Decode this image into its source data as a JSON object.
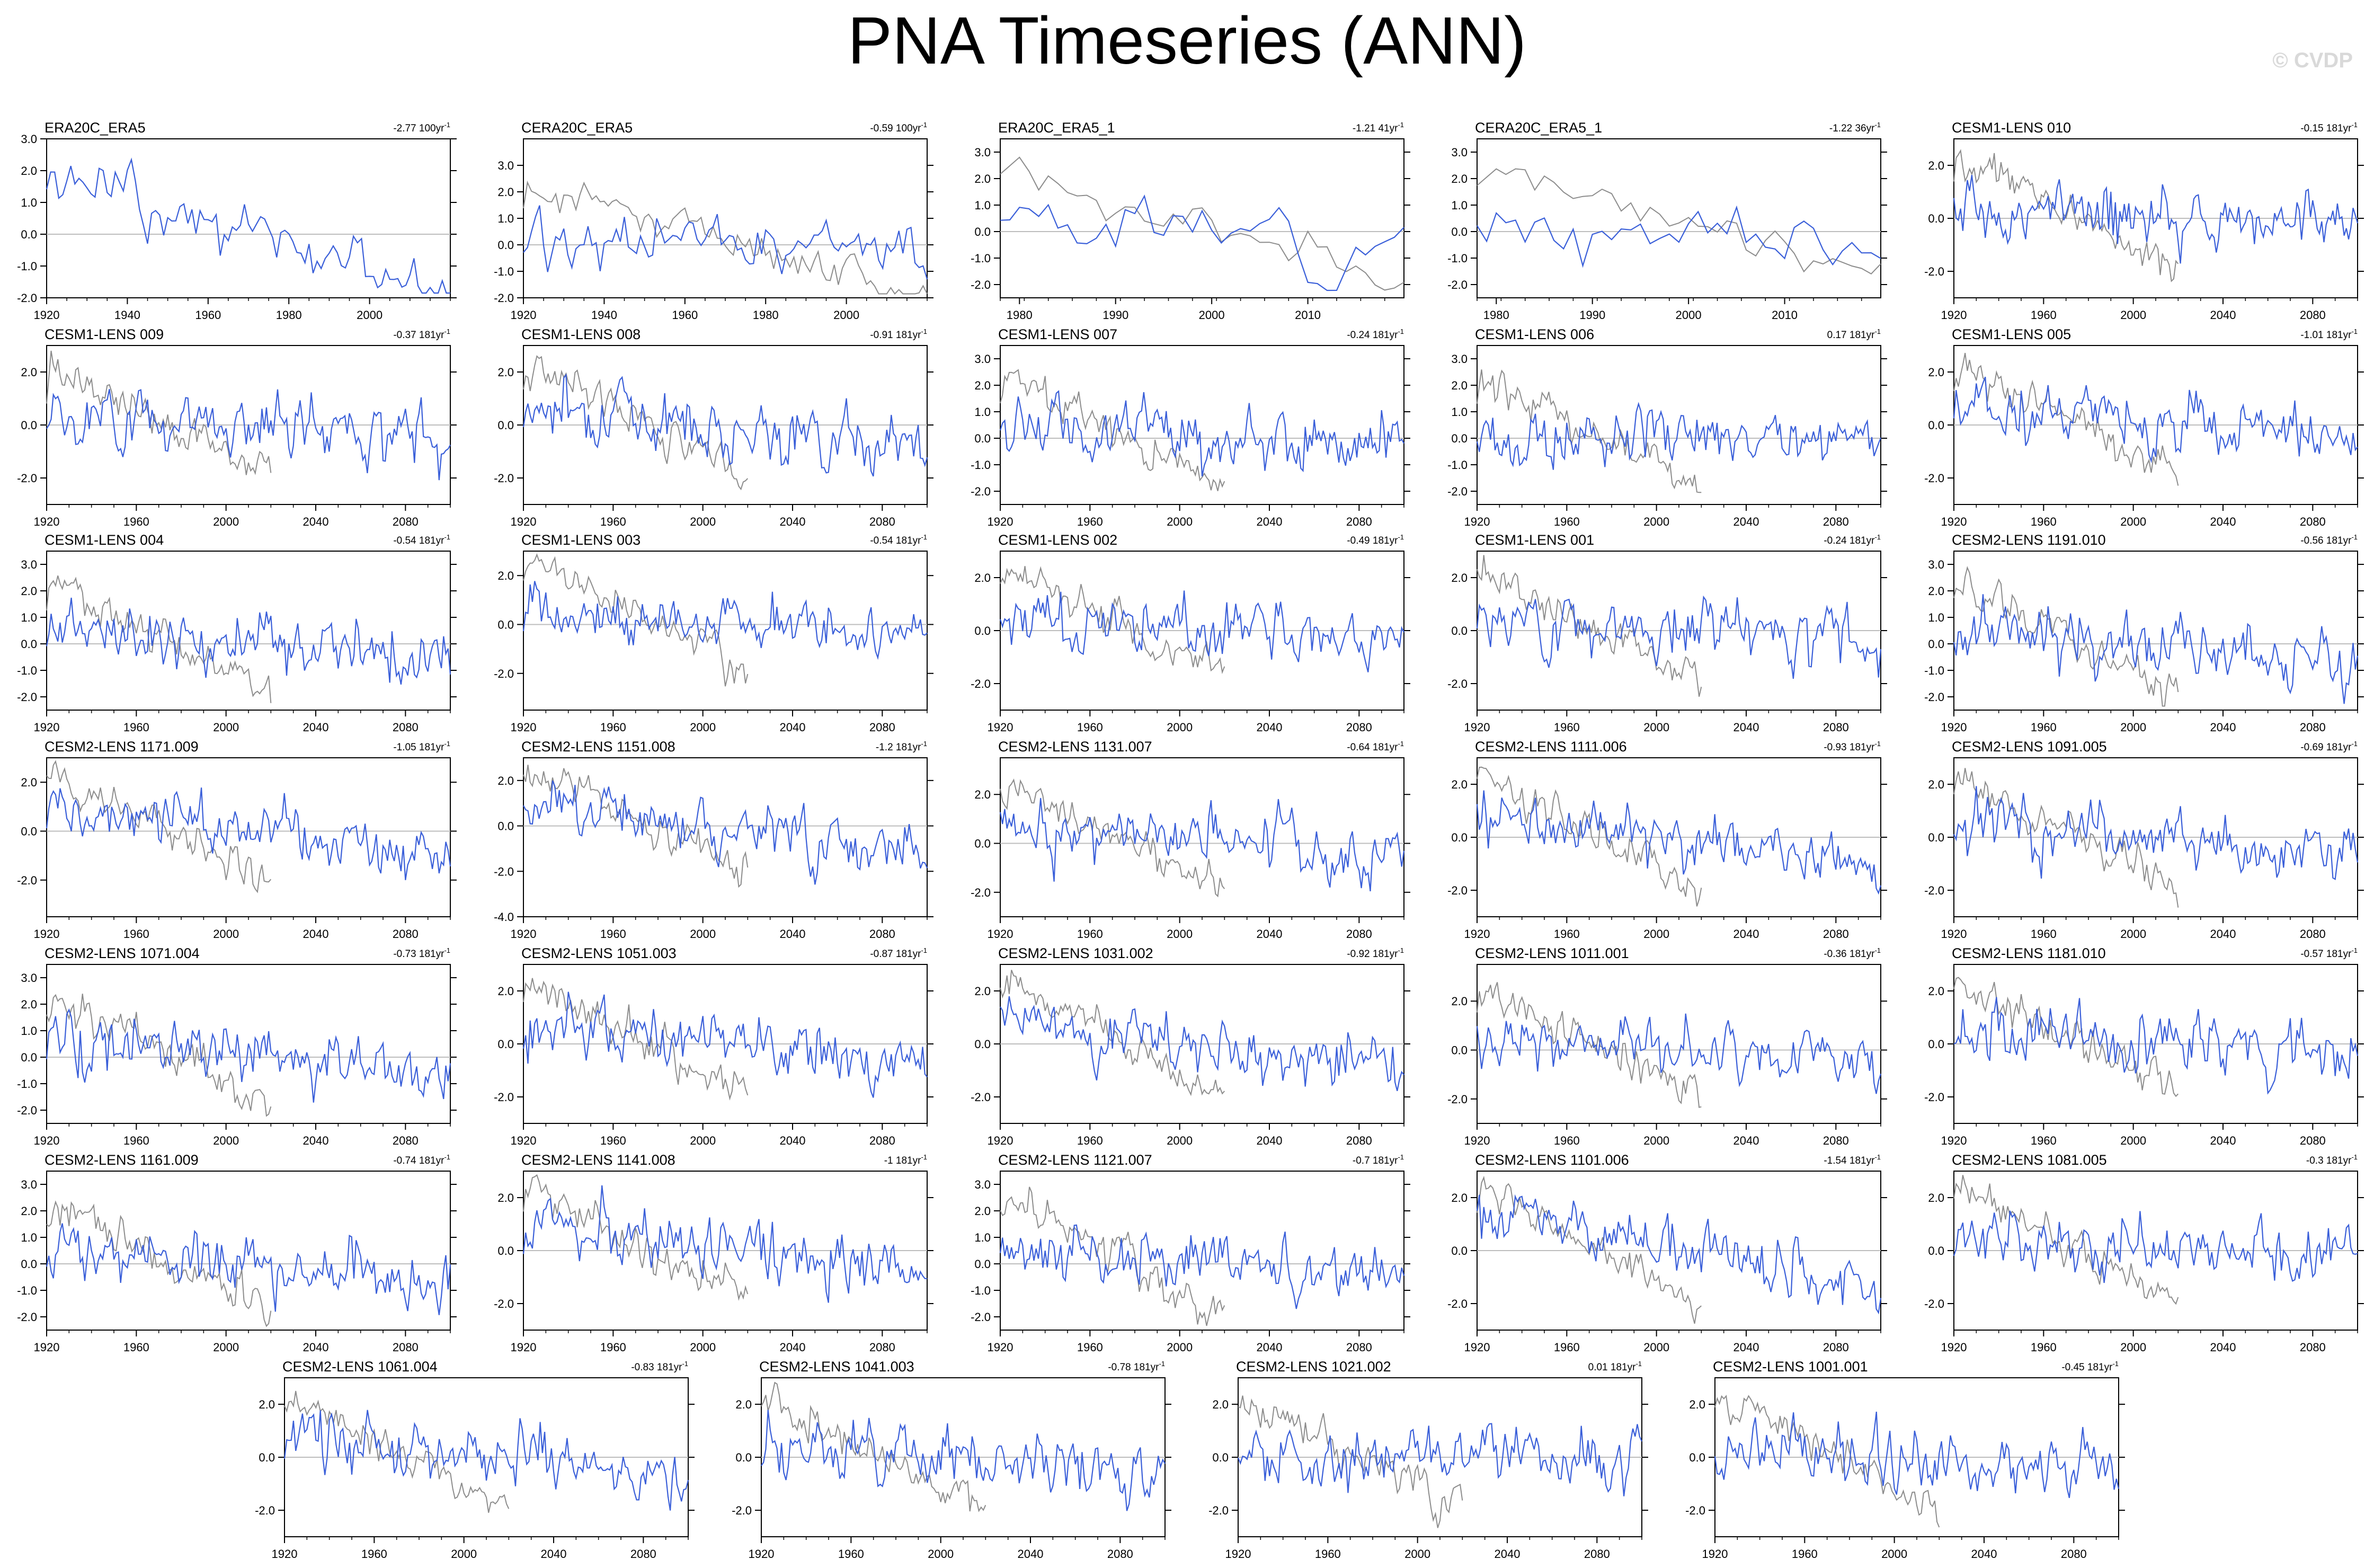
{
  "page": {
    "title": "PNA Timeseries (ANN)",
    "watermark": "© CVDP"
  },
  "colors": {
    "model": "#3a5fd9",
    "obs": "#8c8c8c",
    "zero": "#bdbdbd"
  },
  "chart_data": [
    {
      "type": "line",
      "title": "ERA20C_ERA5",
      "trend": "-2.77 100yr",
      "trend_sup": "-1",
      "x_range": [
        1920,
        2020
      ],
      "x_ticks": [
        1920,
        1940,
        1960,
        1980,
        2000
      ],
      "ylim": [
        -2.0,
        3.0
      ],
      "y_ticks": [
        "3.0",
        "2.0",
        "1.0",
        "0.0",
        "-1.0",
        "-2.0"
      ],
      "obs_series": false,
      "amp": 0.85,
      "drift": 1.2,
      "seed": 1
    },
    {
      "type": "line",
      "title": "CERA20C_ERA5",
      "trend": "-0.59 100yr",
      "trend_sup": "-1",
      "x_range": [
        1920,
        2020
      ],
      "x_ticks": [
        1920,
        1940,
        1960,
        1980,
        2000
      ],
      "ylim": [
        -2.0,
        4.0
      ],
      "y_ticks": [
        "3.0",
        "2.0",
        "1.0",
        "0.0",
        "-1.0",
        "-2.0"
      ],
      "obs_series": true,
      "amp": 1.0,
      "drift": 0.3,
      "seed": 2
    },
    {
      "type": "line",
      "title": "ERA20C_ERA5_1",
      "trend": "-1.21 41yr",
      "trend_sup": "-1",
      "x_range": [
        1978,
        2020
      ],
      "x_ticks": [
        1980,
        1990,
        2000,
        2010
      ],
      "ylim": [
        -2.5,
        3.5
      ],
      "y_ticks": [
        "3.0",
        "2.0",
        "1.0",
        "0.0",
        "-1.0",
        "-2.0"
      ],
      "obs_series": true,
      "amp": 1.1,
      "drift": 0.3,
      "seed": 3
    },
    {
      "type": "line",
      "title": "CERA20C_ERA5_1",
      "trend": "-1.22 36yr",
      "trend_sup": "-1",
      "x_range": [
        1978,
        2020
      ],
      "x_ticks": [
        1980,
        1990,
        2000,
        2010
      ],
      "ylim": [
        -2.5,
        3.5
      ],
      "y_ticks": [
        "3.0",
        "2.0",
        "1.0",
        "0.0",
        "-1.0",
        "-2.0"
      ],
      "obs_series": true,
      "amp": 1.1,
      "drift": 0.3,
      "seed": 4
    },
    {
      "type": "line",
      "title": "CESM1-LENS 010",
      "trend": "-0.15 181yr",
      "trend_sup": "-1",
      "x_range": [
        1920,
        2100
      ],
      "x_ticks": [
        1920,
        1960,
        2000,
        2040,
        2080
      ],
      "ylim": [
        -3.0,
        3.0
      ],
      "y_ticks": [
        "2.0",
        "0.0",
        "-2.0"
      ],
      "obs_series": true,
      "amp": 1.0,
      "drift": 0.1,
      "seed": 5
    },
    {
      "type": "line",
      "title": "CESM1-LENS 009",
      "trend": "-0.37 181yr",
      "trend_sup": "-1",
      "x_range": [
        1920,
        2100
      ],
      "x_ticks": [
        1920,
        1960,
        2000,
        2040,
        2080
      ],
      "ylim": [
        -3.0,
        3.0
      ],
      "y_ticks": [
        "2.0",
        "0.0",
        "-2.0"
      ],
      "obs_series": true,
      "amp": 1.0,
      "drift": 0.3,
      "seed": 6
    },
    {
      "type": "line",
      "title": "CESM1-LENS 008",
      "trend": "-0.91 181yr",
      "trend_sup": "-1",
      "x_range": [
        1920,
        2100
      ],
      "x_ticks": [
        1920,
        1960,
        2000,
        2040,
        2080
      ],
      "ylim": [
        -3.0,
        3.0
      ],
      "y_ticks": [
        "2.0",
        "0.0",
        "-2.0"
      ],
      "obs_series": true,
      "amp": 1.0,
      "drift": 0.6,
      "seed": 7
    },
    {
      "type": "line",
      "title": "CESM1-LENS 007",
      "trend": "-0.24 181yr",
      "trend_sup": "-1",
      "x_range": [
        1920,
        2100
      ],
      "x_ticks": [
        1920,
        1960,
        2000,
        2040,
        2080
      ],
      "ylim": [
        -2.5,
        3.5
      ],
      "y_ticks": [
        "3.0",
        "2.0",
        "1.0",
        "0.0",
        "-1.0",
        "-2.0"
      ],
      "obs_series": true,
      "amp": 1.0,
      "drift": 0.2,
      "seed": 8
    },
    {
      "type": "line",
      "title": "CESM1-LENS 006",
      "trend": "0.17 181yr",
      "trend_sup": "-1",
      "x_range": [
        1920,
        2100
      ],
      "x_ticks": [
        1920,
        1960,
        2000,
        2040,
        2080
      ],
      "ylim": [
        -2.5,
        3.5
      ],
      "y_ticks": [
        "3.0",
        "2.0",
        "1.0",
        "0.0",
        "-1.0",
        "-2.0"
      ],
      "obs_series": true,
      "amp": 1.0,
      "drift": -0.1,
      "seed": 9
    },
    {
      "type": "line",
      "title": "CESM1-LENS 005",
      "trend": "-1.01 181yr",
      "trend_sup": "-1",
      "x_range": [
        1920,
        2100
      ],
      "x_ticks": [
        1920,
        1960,
        2000,
        2040,
        2080
      ],
      "ylim": [
        -3.0,
        3.0
      ],
      "y_ticks": [
        "2.0",
        "0.0",
        "-2.0"
      ],
      "obs_series": true,
      "amp": 1.0,
      "drift": 0.6,
      "seed": 10
    },
    {
      "type": "line",
      "title": "CESM1-LENS 004",
      "trend": "-0.54 181yr",
      "trend_sup": "-1",
      "x_range": [
        1920,
        2100
      ],
      "x_ticks": [
        1920,
        1960,
        2000,
        2040,
        2080
      ],
      "ylim": [
        -2.5,
        3.5
      ],
      "y_ticks": [
        "3.0",
        "2.0",
        "1.0",
        "0.0",
        "-1.0",
        "-2.0"
      ],
      "obs_series": true,
      "amp": 1.0,
      "drift": 0.4,
      "seed": 11
    },
    {
      "type": "line",
      "title": "CESM1-LENS 003",
      "trend": "-0.54 181yr",
      "trend_sup": "-1",
      "x_range": [
        1920,
        2100
      ],
      "x_ticks": [
        1920,
        1960,
        2000,
        2040,
        2080
      ],
      "ylim": [
        -3.5,
        3.0
      ],
      "y_ticks": [
        "2.0",
        "0.0",
        "-2.0"
      ],
      "obs_series": true,
      "amp": 1.0,
      "drift": 0.4,
      "seed": 12
    },
    {
      "type": "line",
      "title": "CESM1-LENS 002",
      "trend": "-0.49 181yr",
      "trend_sup": "-1",
      "x_range": [
        1920,
        2100
      ],
      "x_ticks": [
        1920,
        1960,
        2000,
        2040,
        2080
      ],
      "ylim": [
        -3.0,
        3.0
      ],
      "y_ticks": [
        "2.0",
        "0.0",
        "-2.0"
      ],
      "obs_series": true,
      "amp": 1.0,
      "drift": 0.4,
      "seed": 13
    },
    {
      "type": "line",
      "title": "CESM1-LENS 001",
      "trend": "-0.24 181yr",
      "trend_sup": "-1",
      "x_range": [
        1920,
        2100
      ],
      "x_ticks": [
        1920,
        1960,
        2000,
        2040,
        2080
      ],
      "ylim": [
        -3.0,
        3.0
      ],
      "y_ticks": [
        "2.0",
        "0.0",
        "-2.0"
      ],
      "obs_series": true,
      "amp": 1.0,
      "drift": 0.2,
      "seed": 14
    },
    {
      "type": "line",
      "title": "CESM2-LENS 1191.010",
      "trend": "-0.56 181yr",
      "trend_sup": "-1",
      "x_range": [
        1920,
        2100
      ],
      "x_ticks": [
        1920,
        1960,
        2000,
        2040,
        2080
      ],
      "ylim": [
        -2.5,
        3.5
      ],
      "y_ticks": [
        "3.0",
        "2.0",
        "1.0",
        "0.0",
        "-1.0",
        "-2.0"
      ],
      "obs_series": true,
      "amp": 1.0,
      "drift": 0.4,
      "seed": 15
    },
    {
      "type": "line",
      "title": "CESM2-LENS 1171.009",
      "trend": "-1.05 181yr",
      "trend_sup": "-1",
      "x_range": [
        1920,
        2100
      ],
      "x_ticks": [
        1920,
        1960,
        2000,
        2040,
        2080
      ],
      "ylim": [
        -3.5,
        3.0
      ],
      "y_ticks": [
        "2.0",
        "0.0",
        "-2.0"
      ],
      "obs_series": true,
      "amp": 1.0,
      "drift": 0.7,
      "seed": 16
    },
    {
      "type": "line",
      "title": "CESM2-LENS 1151.008",
      "trend": "-1.2 181yr",
      "trend_sup": "-1",
      "x_range": [
        1920,
        2100
      ],
      "x_ticks": [
        1920,
        1960,
        2000,
        2040,
        2080
      ],
      "ylim": [
        -4.0,
        3.0
      ],
      "y_ticks": [
        "2.0",
        "0.0",
        "-2.0",
        "-4.0"
      ],
      "obs_series": true,
      "amp": 1.0,
      "drift": 0.8,
      "seed": 17
    },
    {
      "type": "line",
      "title": "CESM2-LENS 1131.007",
      "trend": "-0.64 181yr",
      "trend_sup": "-1",
      "x_range": [
        1920,
        2100
      ],
      "x_ticks": [
        1920,
        1960,
        2000,
        2040,
        2080
      ],
      "ylim": [
        -3.0,
        3.5
      ],
      "y_ticks": [
        "2.0",
        "0.0",
        "-2.0"
      ],
      "obs_series": true,
      "amp": 1.0,
      "drift": 0.4,
      "seed": 18
    },
    {
      "type": "line",
      "title": "CESM2-LENS 1111.006",
      "trend": "-0.93 181yr",
      "trend_sup": "-1",
      "x_range": [
        1920,
        2100
      ],
      "x_ticks": [
        1920,
        1960,
        2000,
        2040,
        2080
      ],
      "ylim": [
        -3.0,
        3.0
      ],
      "y_ticks": [
        "2.0",
        "0.0",
        "-2.0"
      ],
      "obs_series": true,
      "amp": 1.0,
      "drift": 0.6,
      "seed": 19
    },
    {
      "type": "line",
      "title": "CESM2-LENS 1091.005",
      "trend": "-0.69 181yr",
      "trend_sup": "-1",
      "x_range": [
        1920,
        2100
      ],
      "x_ticks": [
        1920,
        1960,
        2000,
        2040,
        2080
      ],
      "ylim": [
        -3.0,
        3.0
      ],
      "y_ticks": [
        "2.0",
        "0.0",
        "-2.0"
      ],
      "obs_series": true,
      "amp": 1.0,
      "drift": 0.5,
      "seed": 20
    },
    {
      "type": "line",
      "title": "CESM2-LENS 1071.004",
      "trend": "-0.73 181yr",
      "trend_sup": "-1",
      "x_range": [
        1920,
        2100
      ],
      "x_ticks": [
        1920,
        1960,
        2000,
        2040,
        2080
      ],
      "ylim": [
        -2.5,
        3.5
      ],
      "y_ticks": [
        "3.0",
        "2.0",
        "1.0",
        "0.0",
        "-1.0",
        "-2.0"
      ],
      "obs_series": true,
      "amp": 1.0,
      "drift": 0.5,
      "seed": 21
    },
    {
      "type": "line",
      "title": "CESM2-LENS 1051.003",
      "trend": "-0.87 181yr",
      "trend_sup": "-1",
      "x_range": [
        1920,
        2100
      ],
      "x_ticks": [
        1920,
        1960,
        2000,
        2040,
        2080
      ],
      "ylim": [
        -3.0,
        3.0
      ],
      "y_ticks": [
        "2.0",
        "0.0",
        "-2.0"
      ],
      "obs_series": true,
      "amp": 1.0,
      "drift": 0.6,
      "seed": 22
    },
    {
      "type": "line",
      "title": "CESM2-LENS 1031.002",
      "trend": "-0.92 181yr",
      "trend_sup": "-1",
      "x_range": [
        1920,
        2100
      ],
      "x_ticks": [
        1920,
        1960,
        2000,
        2040,
        2080
      ],
      "ylim": [
        -3.0,
        3.0
      ],
      "y_ticks": [
        "2.0",
        "0.0",
        "-2.0"
      ],
      "obs_series": true,
      "amp": 1.0,
      "drift": 0.6,
      "seed": 23
    },
    {
      "type": "line",
      "title": "CESM2-LENS 1011.001",
      "trend": "-0.36 181yr",
      "trend_sup": "-1",
      "x_range": [
        1920,
        2100
      ],
      "x_ticks": [
        1920,
        1960,
        2000,
        2040,
        2080
      ],
      "ylim": [
        -3.0,
        3.5
      ],
      "y_ticks": [
        "2.0",
        "0.0",
        "-2.0"
      ],
      "obs_series": true,
      "amp": 1.0,
      "drift": 0.3,
      "seed": 24
    },
    {
      "type": "line",
      "title": "CESM2-LENS 1181.010",
      "trend": "-0.57 181yr",
      "trend_sup": "-1",
      "x_range": [
        1920,
        2100
      ],
      "x_ticks": [
        1920,
        1960,
        2000,
        2040,
        2080
      ],
      "ylim": [
        -3.0,
        3.0
      ],
      "y_ticks": [
        "2.0",
        "0.0",
        "-2.0"
      ],
      "obs_series": true,
      "amp": 1.0,
      "drift": 0.4,
      "seed": 25
    },
    {
      "type": "line",
      "title": "CESM2-LENS 1161.009",
      "trend": "-0.74 181yr",
      "trend_sup": "-1",
      "x_range": [
        1920,
        2100
      ],
      "x_ticks": [
        1920,
        1960,
        2000,
        2040,
        2080
      ],
      "ylim": [
        -2.5,
        3.5
      ],
      "y_ticks": [
        "3.0",
        "2.0",
        "1.0",
        "0.0",
        "-1.0",
        "-2.0"
      ],
      "obs_series": true,
      "amp": 1.0,
      "drift": 0.5,
      "seed": 26
    },
    {
      "type": "line",
      "title": "CESM2-LENS 1141.008",
      "trend": "-1 181yr",
      "trend_sup": "-1",
      "x_range": [
        1920,
        2100
      ],
      "x_ticks": [
        1920,
        1960,
        2000,
        2040,
        2080
      ],
      "ylim": [
        -3.0,
        3.0
      ],
      "y_ticks": [
        "2.0",
        "0.0",
        "-2.0"
      ],
      "obs_series": true,
      "amp": 1.0,
      "drift": 0.7,
      "seed": 27
    },
    {
      "type": "line",
      "title": "CESM2-LENS 1121.007",
      "trend": "-0.7 181yr",
      "trend_sup": "-1",
      "x_range": [
        1920,
        2100
      ],
      "x_ticks": [
        1920,
        1960,
        2000,
        2040,
        2080
      ],
      "ylim": [
        -2.5,
        3.5
      ],
      "y_ticks": [
        "3.0",
        "2.0",
        "1.0",
        "0.0",
        "-1.0",
        "-2.0"
      ],
      "obs_series": true,
      "amp": 1.0,
      "drift": 0.5,
      "seed": 28
    },
    {
      "type": "line",
      "title": "CESM2-LENS 1101.006",
      "trend": "-1.54 181yr",
      "trend_sup": "-1",
      "x_range": [
        1920,
        2100
      ],
      "x_ticks": [
        1920,
        1960,
        2000,
        2040,
        2080
      ],
      "ylim": [
        -3.0,
        3.0
      ],
      "y_ticks": [
        "2.0",
        "0.0",
        "-2.0"
      ],
      "obs_series": true,
      "amp": 1.0,
      "drift": 1.0,
      "seed": 29
    },
    {
      "type": "line",
      "title": "CESM2-LENS 1081.005",
      "trend": "-0.3 181yr",
      "trend_sup": "-1",
      "x_range": [
        1920,
        2100
      ],
      "x_ticks": [
        1920,
        1960,
        2000,
        2040,
        2080
      ],
      "ylim": [
        -3.0,
        3.0
      ],
      "y_ticks": [
        "2.0",
        "0.0",
        "-2.0"
      ],
      "obs_series": true,
      "amp": 1.0,
      "drift": 0.2,
      "seed": 30
    },
    {
      "type": "line",
      "title": "CESM2-LENS 1061.004",
      "trend": "-0.83 181yr",
      "trend_sup": "-1",
      "x_range": [
        1920,
        2100
      ],
      "x_ticks": [
        1920,
        1960,
        2000,
        2040,
        2080
      ],
      "ylim": [
        -3.0,
        3.0
      ],
      "y_ticks": [
        "2.0",
        "0.0",
        "-2.0"
      ],
      "obs_series": true,
      "amp": 1.0,
      "drift": 0.6,
      "seed": 31
    },
    {
      "type": "line",
      "title": "CESM2-LENS 1041.003",
      "trend": "-0.78 181yr",
      "trend_sup": "-1",
      "x_range": [
        1920,
        2100
      ],
      "x_ticks": [
        1920,
        1960,
        2000,
        2040,
        2080
      ],
      "ylim": [
        -3.0,
        3.0
      ],
      "y_ticks": [
        "2.0",
        "0.0",
        "-2.0"
      ],
      "obs_series": true,
      "amp": 1.0,
      "drift": 0.5,
      "seed": 32
    },
    {
      "type": "line",
      "title": "CESM2-LENS 1021.002",
      "trend": "0.01 181yr",
      "trend_sup": "-1",
      "x_range": [
        1920,
        2100
      ],
      "x_ticks": [
        1920,
        1960,
        2000,
        2040,
        2080
      ],
      "ylim": [
        -3.0,
        3.0
      ],
      "y_ticks": [
        "2.0",
        "0.0",
        "-2.0"
      ],
      "obs_series": true,
      "amp": 1.0,
      "drift": 0.0,
      "seed": 33
    },
    {
      "type": "line",
      "title": "CESM2-LENS 1001.001",
      "trend": "-0.45 181yr",
      "trend_sup": "-1",
      "x_range": [
        1920,
        2100
      ],
      "x_ticks": [
        1920,
        1960,
        2000,
        2040,
        2080
      ],
      "ylim": [
        -3.0,
        3.0
      ],
      "y_ticks": [
        "2.0",
        "0.0",
        "-2.0"
      ],
      "obs_series": true,
      "amp": 1.0,
      "drift": 0.3,
      "seed": 34
    }
  ]
}
